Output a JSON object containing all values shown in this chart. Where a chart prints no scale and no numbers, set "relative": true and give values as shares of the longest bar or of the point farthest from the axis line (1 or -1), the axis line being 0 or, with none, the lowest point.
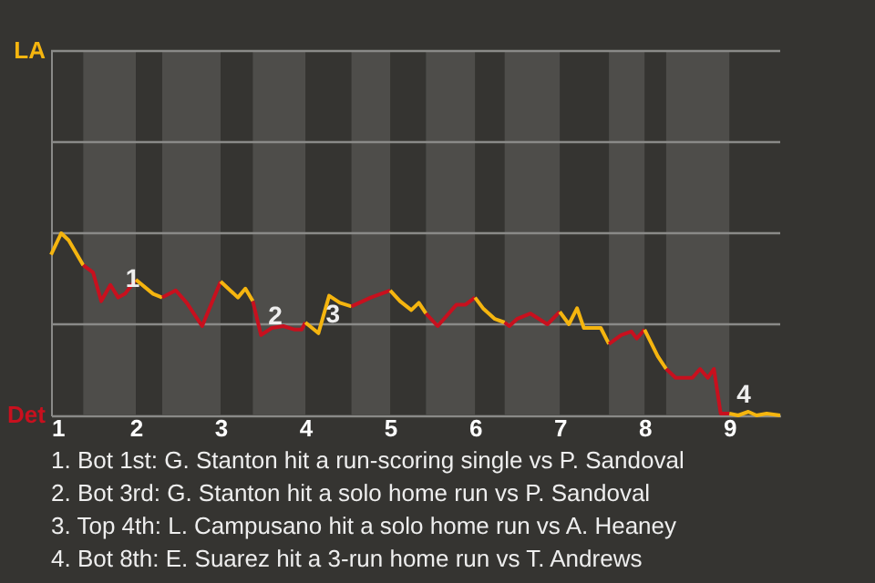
{
  "chart_data": {
    "type": "line",
    "relative": true,
    "series": [
      {
        "color": "#f5b50f",
        "x": [
          1,
          1.12,
          1.208,
          1.38
        ],
        "values": [
          0.882,
          1,
          0.961,
          0.824
        ]
      },
      {
        "color": "#c8101e",
        "x": [
          1.38,
          1.496,
          1.592,
          1.7,
          1.792,
          1.872,
          2
        ],
        "values": [
          0.824,
          0.784,
          0.627,
          0.716,
          0.647,
          0.667,
          0.745
        ]
      },
      {
        "color": "#f5b50f",
        "x": [
          2,
          2.204,
          2.311
        ],
        "values": [
          0.745,
          0.667,
          0.647
        ]
      },
      {
        "color": "#c8101e",
        "x": [
          2.311,
          2.471,
          2.6,
          2.782,
          3
        ],
        "values": [
          0.647,
          0.686,
          0.618,
          0.49,
          0.735
        ]
      },
      {
        "color": "#f5b50f",
        "x": [
          3,
          3.204,
          3.292,
          3.38
        ],
        "values": [
          0.735,
          0.647,
          0.696,
          0.627
        ]
      },
      {
        "color": "#c8101e",
        "x": [
          3.38,
          3.476,
          3.604,
          3.74,
          3.876,
          3.956,
          4
        ],
        "values": [
          0.627,
          0.441,
          0.48,
          0.49,
          0.471,
          0.471,
          0.51
        ]
      },
      {
        "color": "#f5b50f",
        "x": [
          4,
          4.154,
          4.28,
          4.406,
          4.543
        ],
        "values": [
          0.51,
          0.451,
          0.657,
          0.618,
          0.598
        ]
      },
      {
        "color": "#c8101e",
        "x": [
          4.543,
          4.771,
          5
        ],
        "values": [
          0.598,
          0.647,
          0.686
        ]
      },
      {
        "color": "#f5b50f",
        "x": [
          5,
          5.116,
          5.249,
          5.338,
          5.422
        ],
        "values": [
          0.686,
          0.627,
          0.578,
          0.618,
          0.559
        ]
      },
      {
        "color": "#c8101e",
        "x": [
          5.422,
          5.56,
          5.782,
          5.889,
          6
        ],
        "values": [
          0.559,
          0.49,
          0.608,
          0.608,
          0.647
        ]
      },
      {
        "color": "#f5b50f",
        "x": [
          6,
          6.095,
          6.235,
          6.35
        ],
        "values": [
          0.647,
          0.588,
          0.529,
          0.51
        ]
      },
      {
        "color": "#c8101e",
        "x": [
          6.35,
          6.405,
          6.495,
          6.655,
          6.855,
          7
        ],
        "values": [
          0.51,
          0.49,
          0.529,
          0.559,
          0.5,
          0.569
        ]
      },
      {
        "color": "#f5b50f",
        "x": [
          7,
          7.108,
          7.204,
          7.284,
          7.484,
          7.58
        ],
        "values": [
          0.569,
          0.5,
          0.588,
          0.48,
          0.48,
          0.392
        ]
      },
      {
        "color": "#c8101e",
        "x": [
          7.58,
          7.724,
          7.844,
          7.908,
          8
        ],
        "values": [
          0.392,
          0.441,
          0.461,
          0.422,
          0.471
        ]
      },
      {
        "color": "#f5b50f",
        "x": [
          8,
          8.156,
          8.255
        ],
        "values": [
          0.471,
          0.324,
          0.255
        ]
      },
      {
        "color": "#c8101e",
        "x": [
          8.255,
          8.367,
          8.564,
          8.655,
          8.745,
          8.818,
          8.898,
          9
        ],
        "values": [
          0.255,
          0.206,
          0.206,
          0.255,
          0.206,
          0.255,
          0.01,
          0.01
        ]
      },
      {
        "color": "#f5b50f",
        "x": [
          9,
          9.104,
          9.224,
          9.32,
          9.44,
          9.6
        ],
        "values": [
          0.01,
          0,
          0.02,
          0,
          0.01,
          0
        ]
      }
    ],
    "xlim": [
      1,
      9.6
    ],
    "xticks": [
      1,
      2,
      3,
      4,
      5,
      6,
      7,
      8,
      9
    ],
    "ref_lines": [
      {
        "axis": "y",
        "value": 0.5,
        "color": "#8a8a88"
      },
      {
        "axis": "y",
        "value": 1,
        "color": "#8a8a88"
      },
      {
        "axis": "y",
        "value": 1.5,
        "color": "#8a8a88"
      },
      {
        "axis": "y",
        "value": 2,
        "color": "#8a8a88"
      }
    ],
    "bands": [
      {
        "axis": "x",
        "from": 1.38,
        "to": 2,
        "color": "#4e4d4a"
      },
      {
        "axis": "x",
        "from": 2.311,
        "to": 3,
        "color": "#4e4d4a"
      },
      {
        "axis": "x",
        "from": 3.38,
        "to": 4,
        "color": "#4e4d4a"
      },
      {
        "axis": "x",
        "from": 4.543,
        "to": 5,
        "color": "#4e4d4a"
      },
      {
        "axis": "x",
        "from": 5.422,
        "to": 6,
        "color": "#4e4d4a"
      },
      {
        "axis": "x",
        "from": 6.35,
        "to": 7,
        "color": "#4e4d4a"
      },
      {
        "axis": "x",
        "from": 7.58,
        "to": 8,
        "color": "#4e4d4a"
      },
      {
        "axis": "x",
        "from": 8.255,
        "to": 9,
        "color": "#4e4d4a"
      }
    ],
    "annotations": [
      {
        "text": "1",
        "x": 1.792,
        "y": 0.647
      },
      {
        "text": "2",
        "x": 3.476,
        "y": 0.441
      },
      {
        "text": "3",
        "x": 4.154,
        "y": 0.451
      },
      {
        "text": "4",
        "x": 9,
        "y": 0.01
      },
      "LA",
      "Det",
      "1. Bot 1st: G. Stanton hit a run-scoring single vs P. Sandoval",
      "2. Bot 3rd: G. Stanton hit a solo home run vs P. Sandoval",
      "3. Top 4th: L. Campusano hit a solo home run vs A. Heaney",
      "4. Bot 8th: E. Suarez hit a 3-run home run vs T. Andrews"
    ]
  }
}
